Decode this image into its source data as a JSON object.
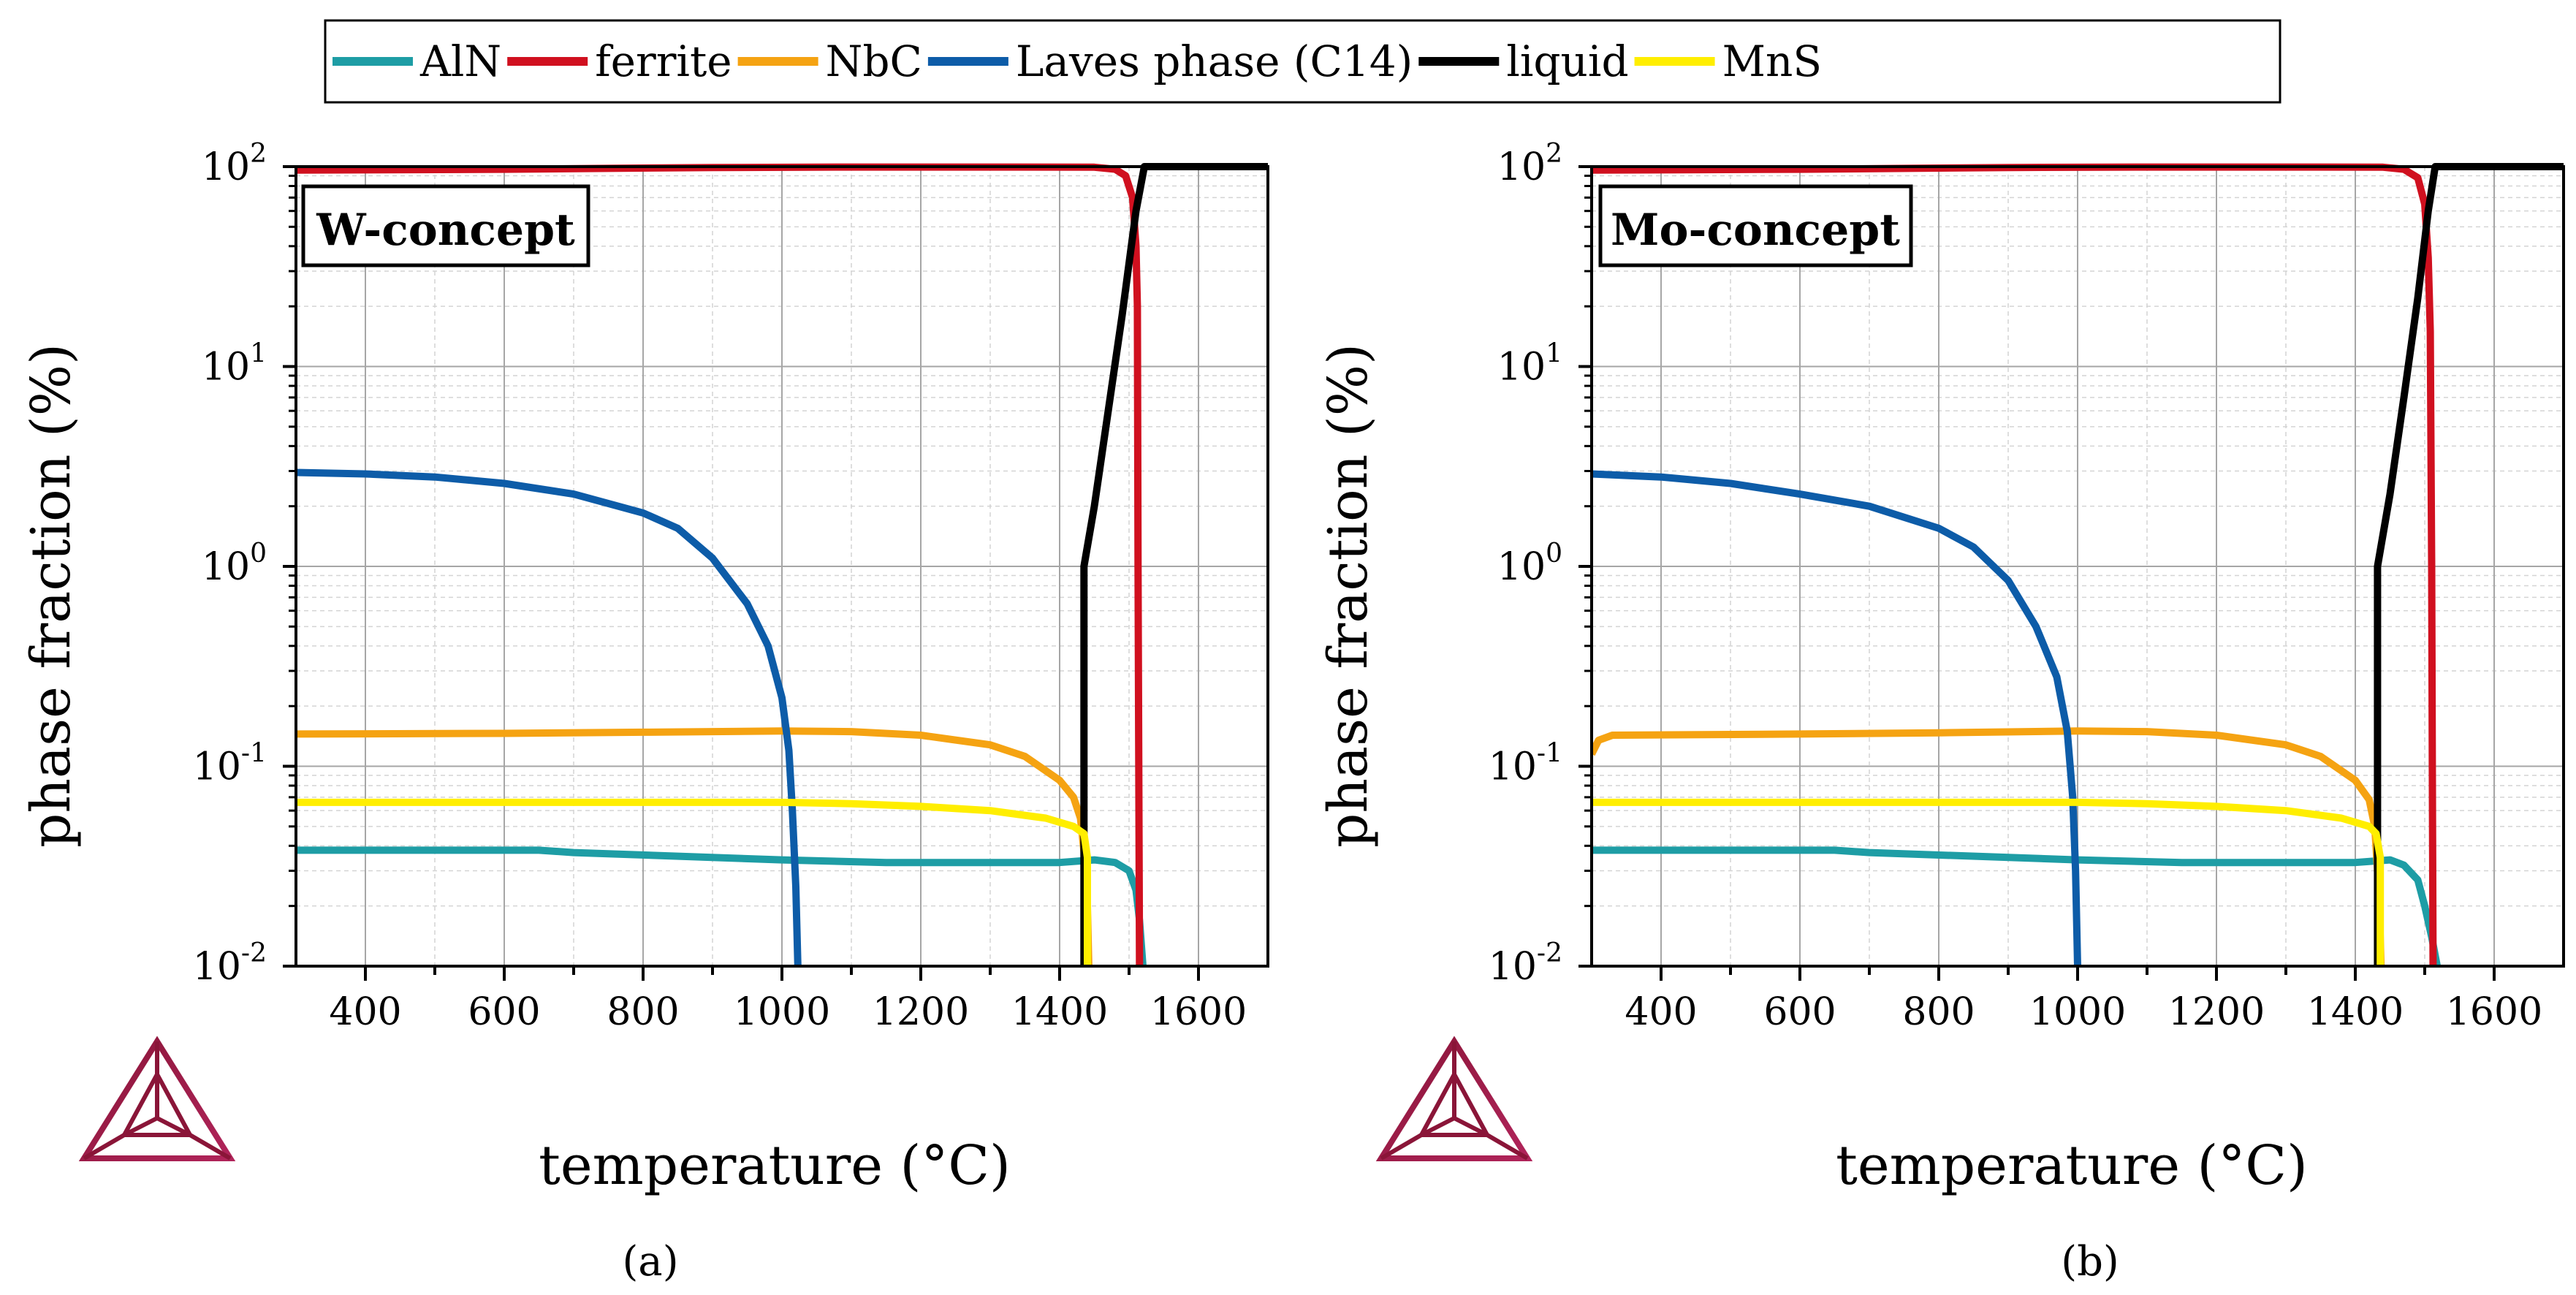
{
  "legend": [
    {
      "name": "AlN",
      "color": "#1e9da5"
    },
    {
      "name": "ferrite",
      "color": "#d0101f"
    },
    {
      "name": "NbC",
      "color": "#f5a312"
    },
    {
      "name": "Laves phase (C14)",
      "color": "#0d5ca8"
    },
    {
      "name": "liquid",
      "color": "#000000"
    },
    {
      "name": "MnS",
      "color": "#ffee00"
    }
  ],
  "chart_data": [
    {
      "type": "line",
      "panel_label": "(a)",
      "concept_label": "W-concept",
      "xlabel": "temperature (°C)",
      "ylabel": "phase fraction (%)",
      "y_scale": "log",
      "xlim": [
        300,
        1700
      ],
      "ylim": [
        0.01,
        100
      ],
      "xticks": [
        400,
        600,
        800,
        1000,
        1200,
        1400,
        1600
      ],
      "yticks": [
        {
          "base": "10",
          "exp": "-2",
          "value": 0.01
        },
        {
          "base": "10",
          "exp": "-1",
          "value": 0.1
        },
        {
          "base": "10",
          "exp": "0",
          "value": 1
        },
        {
          "base": "10",
          "exp": "1",
          "value": 10
        },
        {
          "base": "10",
          "exp": "2",
          "value": 100
        }
      ],
      "series": [
        {
          "name": "AlN",
          "color": "#1e9da5",
          "points": [
            [
              300,
              0.038
            ],
            [
              650,
              0.038
            ],
            [
              700,
              0.037
            ],
            [
              1000,
              0.034
            ],
            [
              1150,
              0.033
            ],
            [
              1300,
              0.033
            ],
            [
              1400,
              0.033
            ],
            [
              1450,
              0.034
            ],
            [
              1480,
              0.033
            ],
            [
              1500,
              0.03
            ],
            [
              1510,
              0.024
            ],
            [
              1515,
              0.017
            ],
            [
              1520,
              0.01
            ]
          ]
        },
        {
          "name": "ferrite",
          "color": "#d0101f",
          "points": [
            [
              300,
              96
            ],
            [
              600,
              97
            ],
            [
              900,
              99
            ],
            [
              1100,
              99.5
            ],
            [
              1300,
              99.5
            ],
            [
              1450,
              99.3
            ],
            [
              1480,
              97
            ],
            [
              1495,
              90
            ],
            [
              1505,
              70
            ],
            [
              1510,
              40
            ],
            [
              1512,
              20
            ],
            [
              1513,
              1
            ],
            [
              1514,
              0.1
            ],
            [
              1515,
              0.01
            ]
          ]
        },
        {
          "name": "NbC",
          "color": "#f5a312",
          "points": [
            [
              300,
              0.145
            ],
            [
              600,
              0.146
            ],
            [
              800,
              0.148
            ],
            [
              1000,
              0.15
            ],
            [
              1100,
              0.149
            ],
            [
              1200,
              0.143
            ],
            [
              1300,
              0.128
            ],
            [
              1350,
              0.112
            ],
            [
              1400,
              0.085
            ],
            [
              1420,
              0.07
            ],
            [
              1430,
              0.055
            ],
            [
              1436,
              0.035
            ],
            [
              1440,
              0.02
            ],
            [
              1442,
              0.01
            ]
          ]
        },
        {
          "name": "Laves phase (C14)",
          "color": "#0d5ca8",
          "points": [
            [
              300,
              2.95
            ],
            [
              400,
              2.9
            ],
            [
              500,
              2.8
            ],
            [
              600,
              2.6
            ],
            [
              700,
              2.3
            ],
            [
              800,
              1.85
            ],
            [
              850,
              1.55
            ],
            [
              900,
              1.1
            ],
            [
              950,
              0.65
            ],
            [
              980,
              0.4
            ],
            [
              1000,
              0.22
            ],
            [
              1010,
              0.12
            ],
            [
              1015,
              0.06
            ],
            [
              1020,
              0.025
            ],
            [
              1023,
              0.01
            ]
          ]
        },
        {
          "name": "liquid",
          "color": "#000000",
          "points": [
            [
              1435,
              0.01
            ],
            [
              1435,
              1
            ],
            [
              1450,
              2.0
            ],
            [
              1470,
              6
            ],
            [
              1490,
              18
            ],
            [
              1510,
              60
            ],
            [
              1522,
              100
            ],
            [
              1700,
              100
            ]
          ]
        },
        {
          "name": "MnS",
          "color": "#ffee00",
          "points": [
            [
              300,
              0.066
            ],
            [
              700,
              0.066
            ],
            [
              1000,
              0.066
            ],
            [
              1100,
              0.065
            ],
            [
              1200,
              0.063
            ],
            [
              1300,
              0.06
            ],
            [
              1380,
              0.055
            ],
            [
              1420,
              0.05
            ],
            [
              1435,
              0.046
            ],
            [
              1440,
              0.035
            ],
            [
              1440,
              0.01
            ]
          ]
        }
      ]
    },
    {
      "type": "line",
      "panel_label": "(b)",
      "concept_label": "Mo-concept",
      "xlabel": "temperature (°C)",
      "ylabel": "phase fraction (%)",
      "y_scale": "log",
      "xlim": [
        300,
        1700
      ],
      "ylim": [
        0.01,
        100
      ],
      "xticks": [
        400,
        600,
        800,
        1000,
        1200,
        1400,
        1600
      ],
      "yticks": [
        {
          "base": "10",
          "exp": "-2",
          "value": 0.01
        },
        {
          "base": "10",
          "exp": "-1",
          "value": 0.1
        },
        {
          "base": "10",
          "exp": "0",
          "value": 1
        },
        {
          "base": "10",
          "exp": "1",
          "value": 10
        },
        {
          "base": "10",
          "exp": "2",
          "value": 100
        }
      ],
      "series": [
        {
          "name": "AlN",
          "color": "#1e9da5",
          "points": [
            [
              300,
              0.038
            ],
            [
              650,
              0.038
            ],
            [
              700,
              0.037
            ],
            [
              1000,
              0.034
            ],
            [
              1150,
              0.033
            ],
            [
              1300,
              0.033
            ],
            [
              1400,
              0.033
            ],
            [
              1450,
              0.034
            ],
            [
              1470,
              0.032
            ],
            [
              1490,
              0.027
            ],
            [
              1500,
              0.02
            ],
            [
              1510,
              0.014
            ],
            [
              1518,
              0.01
            ]
          ]
        },
        {
          "name": "ferrite",
          "color": "#d0101f",
          "points": [
            [
              300,
              96
            ],
            [
              600,
              97
            ],
            [
              900,
              99
            ],
            [
              1100,
              99.5
            ],
            [
              1300,
              99.5
            ],
            [
              1440,
              99.3
            ],
            [
              1470,
              97
            ],
            [
              1490,
              88
            ],
            [
              1500,
              65
            ],
            [
              1505,
              35
            ],
            [
              1508,
              15
            ],
            [
              1510,
              1
            ],
            [
              1511,
              0.1
            ],
            [
              1512,
              0.01
            ]
          ]
        },
        {
          "name": "NbC",
          "color": "#f5a312",
          "points": [
            [
              300,
              0.115
            ],
            [
              310,
              0.135
            ],
            [
              330,
              0.143
            ],
            [
              600,
              0.145
            ],
            [
              800,
              0.147
            ],
            [
              1000,
              0.15
            ],
            [
              1100,
              0.149
            ],
            [
              1200,
              0.143
            ],
            [
              1300,
              0.128
            ],
            [
              1350,
              0.112
            ],
            [
              1400,
              0.085
            ],
            [
              1420,
              0.068
            ],
            [
              1428,
              0.05
            ],
            [
              1432,
              0.03
            ],
            [
              1435,
              0.018
            ],
            [
              1437,
              0.01
            ]
          ]
        },
        {
          "name": "Laves phase (C14)",
          "color": "#0d5ca8",
          "points": [
            [
              300,
              2.9
            ],
            [
              400,
              2.8
            ],
            [
              500,
              2.6
            ],
            [
              600,
              2.3
            ],
            [
              700,
              2.0
            ],
            [
              800,
              1.55
            ],
            [
              850,
              1.25
            ],
            [
              900,
              0.85
            ],
            [
              940,
              0.5
            ],
            [
              970,
              0.28
            ],
            [
              985,
              0.15
            ],
            [
              993,
              0.07
            ],
            [
              997,
              0.03
            ],
            [
              1000,
              0.01
            ]
          ]
        },
        {
          "name": "liquid",
          "color": "#000000",
          "points": [
            [
              1432,
              0.01
            ],
            [
              1432,
              1
            ],
            [
              1450,
              2.3
            ],
            [
              1470,
              7
            ],
            [
              1490,
              22
            ],
            [
              1505,
              60
            ],
            [
              1515,
              100
            ],
            [
              1700,
              100
            ]
          ]
        },
        {
          "name": "MnS",
          "color": "#ffee00",
          "points": [
            [
              300,
              0.066
            ],
            [
              700,
              0.066
            ],
            [
              1000,
              0.066
            ],
            [
              1100,
              0.065
            ],
            [
              1200,
              0.063
            ],
            [
              1300,
              0.06
            ],
            [
              1380,
              0.055
            ],
            [
              1420,
              0.05
            ],
            [
              1430,
              0.046
            ],
            [
              1436,
              0.035
            ],
            [
              1436,
              0.01
            ]
          ]
        }
      ]
    }
  ]
}
